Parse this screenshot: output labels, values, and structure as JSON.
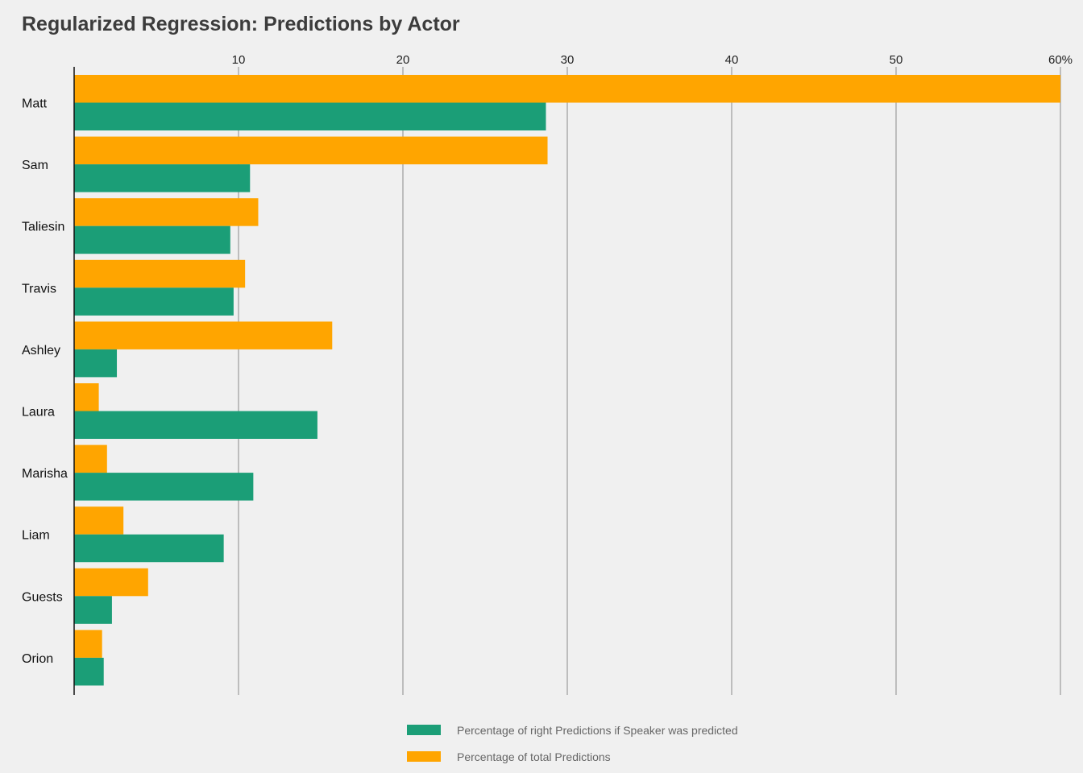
{
  "chart_data": {
    "type": "bar",
    "orientation": "horizontal",
    "title": "Regularized Regression: Predictions by Actor",
    "xlabel": "",
    "ylabel": "",
    "xlim": [
      0,
      60
    ],
    "ticks": [
      {
        "value": 10,
        "label": "10"
      },
      {
        "value": 20,
        "label": "20"
      },
      {
        "value": 30,
        "label": "30"
      },
      {
        "value": 40,
        "label": "40"
      },
      {
        "value": 50,
        "label": "50"
      },
      {
        "value": 60,
        "label": "60%"
      }
    ],
    "grid": true,
    "legend_position": "bottom",
    "categories": [
      "Matt",
      "Sam",
      "Taliesin",
      "Travis",
      "Ashley",
      "Laura",
      "Marisha",
      "Liam",
      "Guests",
      "Orion"
    ],
    "series": [
      {
        "name": "Percentage of total Predictions",
        "color": "#ffa500",
        "values": [
          60.0,
          28.8,
          11.2,
          10.4,
          15.7,
          1.5,
          2.0,
          3.0,
          4.5,
          1.7
        ]
      },
      {
        "name": "Percentage of right Predictions if Speaker was predicted",
        "color": "#1b9e77",
        "values": [
          28.7,
          10.7,
          9.5,
          9.7,
          2.6,
          14.8,
          10.9,
          9.1,
          2.3,
          1.8
        ]
      }
    ],
    "legend_order": [
      1,
      0
    ]
  }
}
